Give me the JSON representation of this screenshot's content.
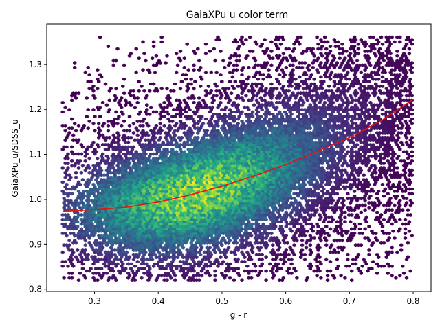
{
  "chart_data": {
    "type": "hexbin-scatter",
    "title": "GaiaXPu u color term",
    "xlabel": "g - r",
    "ylabel": "GaiaXPu_u/SDSS_u",
    "xlim": [
      0.225,
      0.828
    ],
    "ylim": [
      0.795,
      1.39
    ],
    "xticks": [
      0.3,
      0.4,
      0.5,
      0.6,
      0.7,
      0.8
    ],
    "yticks": [
      0.8,
      0.9,
      1.0,
      1.1,
      1.2,
      1.3
    ],
    "xtick_labels": [
      "0.3",
      "0.4",
      "0.5",
      "0.6",
      "0.7",
      "0.8"
    ],
    "ytick_labels": [
      "0.8",
      "0.9",
      "1.0",
      "1.1",
      "1.2",
      "1.3"
    ],
    "grid": false,
    "density": {
      "colormap": "viridis",
      "peak": {
        "x": 0.46,
        "y": 1.01
      },
      "x_range": [
        0.25,
        0.8
      ],
      "y_range": [
        0.82,
        1.365
      ]
    },
    "fit_curve": {
      "color": "#e8130e",
      "x": [
        0.25,
        0.3,
        0.35,
        0.4,
        0.45,
        0.5,
        0.55,
        0.6,
        0.65,
        0.7,
        0.75,
        0.8
      ],
      "y": [
        0.973,
        0.977,
        0.983,
        0.994,
        1.01,
        1.029,
        1.052,
        1.077,
        1.107,
        1.137,
        1.175,
        1.222
      ]
    }
  }
}
